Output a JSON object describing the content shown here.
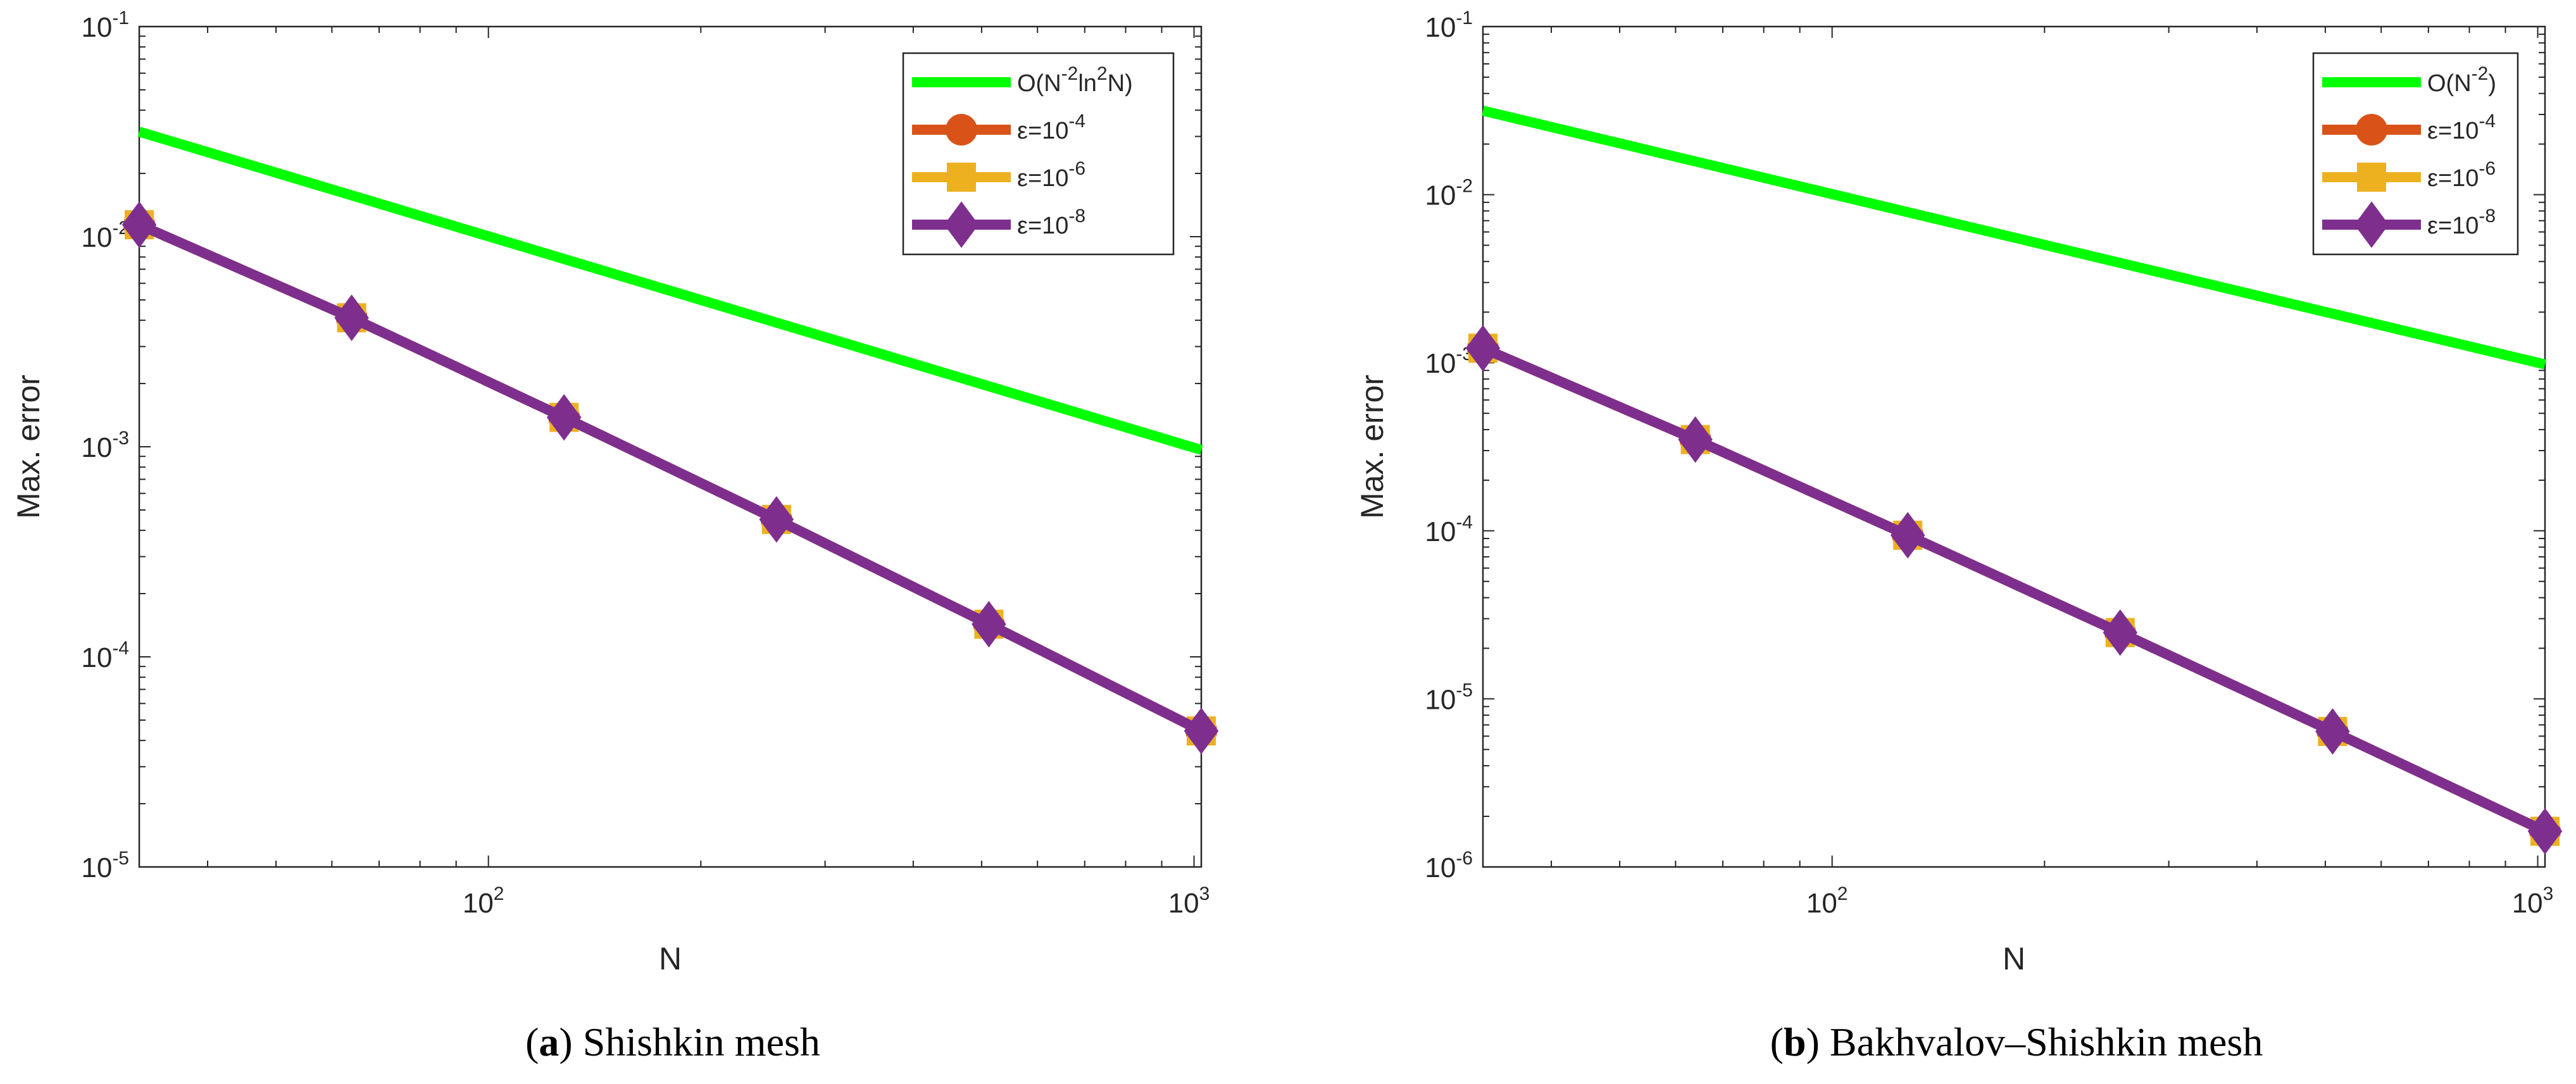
{
  "chart_data": [
    {
      "type": "line",
      "scale": "log-log",
      "caption": {
        "letter": "a",
        "open": "(",
        "close": ")",
        "text": "Shishkin mesh"
      },
      "xlabel": "N",
      "ylabel": "Max. error",
      "xlim": [
        32,
        1024
      ],
      "ylim": [
        1e-05,
        0.1
      ],
      "x_ticks": [
        {
          "base": "10",
          "exp": "2",
          "value": 100
        },
        {
          "base": "10",
          "exp": "3",
          "value": 1000
        }
      ],
      "y_ticks": [
        {
          "base": "10",
          "exp": "-5",
          "value": 1e-05
        },
        {
          "base": "10",
          "exp": "-4",
          "value": 0.0001
        },
        {
          "base": "10",
          "exp": "-3",
          "value": 0.001
        },
        {
          "base": "10",
          "exp": "-2",
          "value": 0.01
        },
        {
          "base": "10",
          "exp": "-1",
          "value": 0.1
        }
      ],
      "legend_position": "top-right",
      "series": [
        {
          "name": "O(N^-2 ln^2 N)",
          "legend_parts": [
            "O(N",
            "-2",
            "ln",
            "2",
            "N)"
          ],
          "color": "#00ff00",
          "marker": "none",
          "x": [
            32,
            1024
          ],
          "y": [
            0.0316,
            0.000966
          ]
        },
        {
          "name": "ε=10^-4",
          "legend_parts": [
            "ε=10",
            "-4"
          ],
          "color": "#d95319",
          "marker": "circle",
          "x": [
            32,
            64,
            128,
            256,
            512,
            1024
          ],
          "y": [
            0.0114,
            0.00411,
            0.00138,
            0.000451,
            0.000143,
            4.44e-05
          ]
        },
        {
          "name": "ε=10^-6",
          "legend_parts": [
            "ε=10",
            "-6"
          ],
          "color": "#edb120",
          "marker": "square",
          "x": [
            32,
            64,
            128,
            256,
            512,
            1024
          ],
          "y": [
            0.0114,
            0.00411,
            0.00138,
            0.000451,
            0.000143,
            4.44e-05
          ]
        },
        {
          "name": "ε=10^-8",
          "legend_parts": [
            "ε=10",
            "-8"
          ],
          "color": "#7e2f8e",
          "marker": "diamond",
          "x": [
            32,
            64,
            128,
            256,
            512,
            1024
          ],
          "y": [
            0.0114,
            0.00411,
            0.00138,
            0.000451,
            0.000143,
            4.44e-05
          ]
        }
      ]
    },
    {
      "type": "line",
      "scale": "log-log",
      "caption": {
        "letter": "b",
        "open": "(",
        "close": ")",
        "text": "Bakhvalov–Shishkin mesh"
      },
      "xlabel": "N",
      "ylabel": "Max. error",
      "xlim": [
        32,
        1024
      ],
      "ylim": [
        1e-06,
        0.1
      ],
      "x_ticks": [
        {
          "base": "10",
          "exp": "2",
          "value": 100
        },
        {
          "base": "10",
          "exp": "3",
          "value": 1000
        }
      ],
      "y_ticks": [
        {
          "base": "10",
          "exp": "-6",
          "value": 1e-06
        },
        {
          "base": "10",
          "exp": "-5",
          "value": 1e-05
        },
        {
          "base": "10",
          "exp": "-4",
          "value": 0.0001
        },
        {
          "base": "10",
          "exp": "-3",
          "value": 0.001
        },
        {
          "base": "10",
          "exp": "-2",
          "value": 0.01
        },
        {
          "base": "10",
          "exp": "-1",
          "value": 0.1
        }
      ],
      "legend_position": "top-right",
      "series": [
        {
          "name": "O(N^-2)",
          "legend_parts": [
            "O(N",
            "-2",
            ")",
            "",
            ""
          ],
          "color": "#00ff00",
          "marker": "none",
          "x": [
            32,
            1024
          ],
          "y": [
            0.0316,
            0.000977
          ]
        },
        {
          "name": "ε=10^-4",
          "legend_parts": [
            "ε=10",
            "-4"
          ],
          "color": "#d95319",
          "marker": "circle",
          "x": [
            32,
            64,
            128,
            256,
            512,
            1024
          ],
          "y": [
            0.00122,
            0.000349,
            9.41e-05,
            2.48e-05,
            6.4e-06,
            1.63e-06
          ]
        },
        {
          "name": "ε=10^-6",
          "legend_parts": [
            "ε=10",
            "-6"
          ],
          "color": "#edb120",
          "marker": "square",
          "x": [
            32,
            64,
            128,
            256,
            512,
            1024
          ],
          "y": [
            0.00122,
            0.000349,
            9.41e-05,
            2.48e-05,
            6.4e-06,
            1.63e-06
          ]
        },
        {
          "name": "ε=10^-8",
          "legend_parts": [
            "ε=10",
            "-8"
          ],
          "color": "#7e2f8e",
          "marker": "diamond",
          "x": [
            32,
            64,
            128,
            256,
            512,
            1024
          ],
          "y": [
            0.00122,
            0.000349,
            9.41e-05,
            2.48e-05,
            6.4e-06,
            1.63e-06
          ]
        }
      ]
    }
  ]
}
